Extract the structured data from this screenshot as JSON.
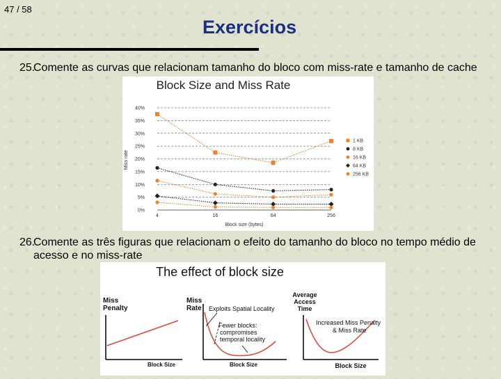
{
  "slide": {
    "number": "47 / 58",
    "title": "Exercícios"
  },
  "questions": [
    {
      "num": "25.",
      "text": "Comente as curvas que relacionam tamanho do bloco com miss-rate e tamanho de cache"
    },
    {
      "num": "26.",
      "text": "Comente as três figuras que relacionam o efeito do tamanho do bloco no tempo médio de acesso e no miss-rate"
    }
  ],
  "figure1": {
    "chart_data": {
      "type": "line",
      "title": "Block Size and Miss Rate",
      "xlabel": "Block size (bytes)",
      "ylabel": "Miss rate",
      "categories": [
        "4",
        "16",
        "64",
        "256"
      ],
      "y_ticks": [
        "0%",
        "5%",
        "10%",
        "15%",
        "20%",
        "25%",
        "30%",
        "35%",
        "40%"
      ],
      "ylim": [
        0,
        40
      ],
      "legend_position": "right",
      "series": [
        {
          "name": "1 KB",
          "color": "#e8832e",
          "marker": "square",
          "values": [
            37.5,
            22.5,
            18.5,
            27
          ]
        },
        {
          "name": "8 KB",
          "color": "#222222",
          "marker": "circle",
          "values": [
            16.5,
            10,
            7.5,
            8
          ]
        },
        {
          "name": "16 KB",
          "color": "#e8832e",
          "marker": "circle",
          "values": [
            11.5,
            6.3,
            5,
            6
          ]
        },
        {
          "name": "64 KB",
          "color": "#222222",
          "marker": "diamond",
          "values": [
            5.5,
            2.8,
            2.3,
            2.3
          ]
        },
        {
          "name": "256 KB",
          "color": "#e8832e",
          "marker": "circle",
          "values": [
            3,
            1.2,
            1,
            1
          ]
        }
      ]
    }
  },
  "figure2": {
    "title": "The effect of block size",
    "panels": [
      {
        "ylabel": [
          "Miss",
          "Penalty"
        ],
        "xlabel": "Block Size"
      },
      {
        "ylabel": [
          "Miss",
          "Rate"
        ],
        "xlabel": "Block Size",
        "annotations": [
          "Exploits Spatial Locality",
          "Fewer blocks:",
          "compromises",
          "temporal locality"
        ]
      },
      {
        "ylabel": [
          "Average",
          "Access",
          "Time"
        ],
        "xlabel": "Block Size",
        "annotations": [
          "Increased Miss Penalty",
          "& Miss Rate"
        ]
      }
    ]
  }
}
